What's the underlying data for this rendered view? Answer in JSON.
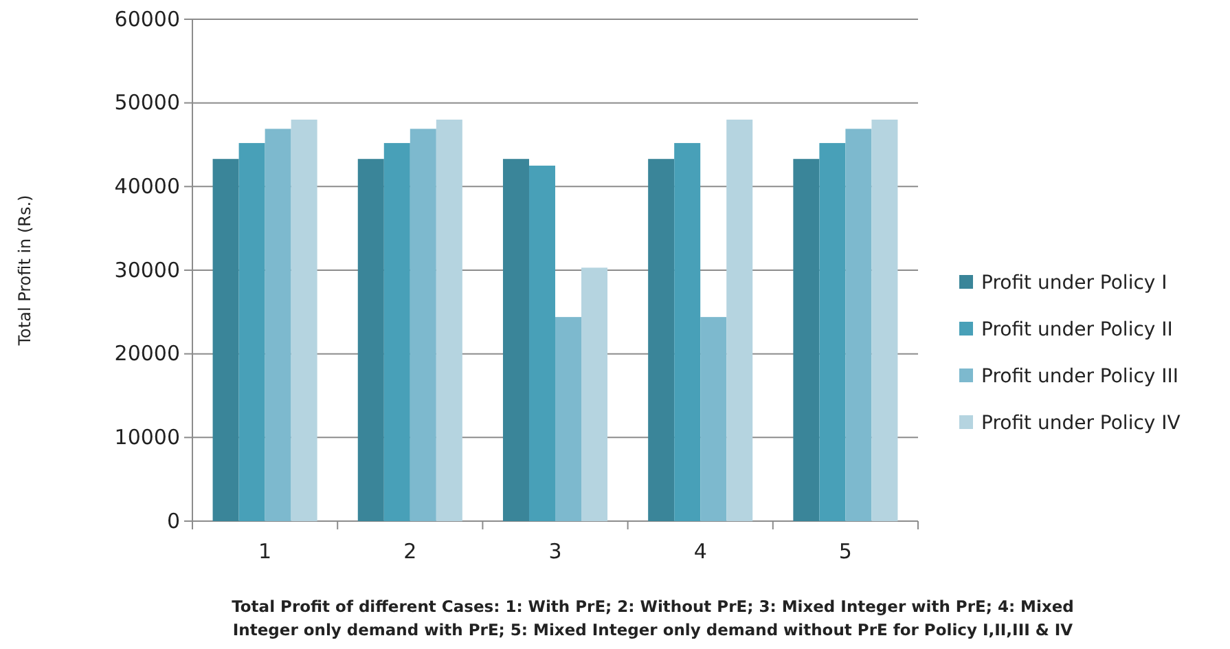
{
  "chart_data": {
    "type": "bar",
    "categories": [
      "1",
      "2",
      "3",
      "4",
      "5"
    ],
    "series": [
      {
        "name": "Profit under Policy I",
        "color": "#3a8599",
        "values": [
          43300,
          43300,
          43300,
          43300,
          43300
        ]
      },
      {
        "name": "Profit under Policy II",
        "color": "#48a0b8",
        "values": [
          45200,
          45200,
          42500,
          45200,
          45200
        ]
      },
      {
        "name": "Profit under Policy III",
        "color": "#7db9ce",
        "values": [
          46900,
          46900,
          24400,
          24400,
          46900
        ]
      },
      {
        "name": "Profit under Policy IV",
        "color": "#b5d4e0",
        "values": [
          48000,
          48000,
          30300,
          48000,
          48000
        ]
      }
    ],
    "ylim": [
      0,
      60000
    ],
    "yticks": [
      0,
      10000,
      20000,
      30000,
      40000,
      50000,
      60000
    ],
    "grid": "y",
    "legend": "right",
    "ylabel": "Total Profit in (Rs.)",
    "xlabel": "Total Profit of different Cases: 1: With PrE; 2: Without PrE; 3: Mixed Integer with PrE; 4: Mixed Integer only demand with PrE; 5: Mixed Integer only demand without PrE  for Policy I,II,III & IV"
  }
}
